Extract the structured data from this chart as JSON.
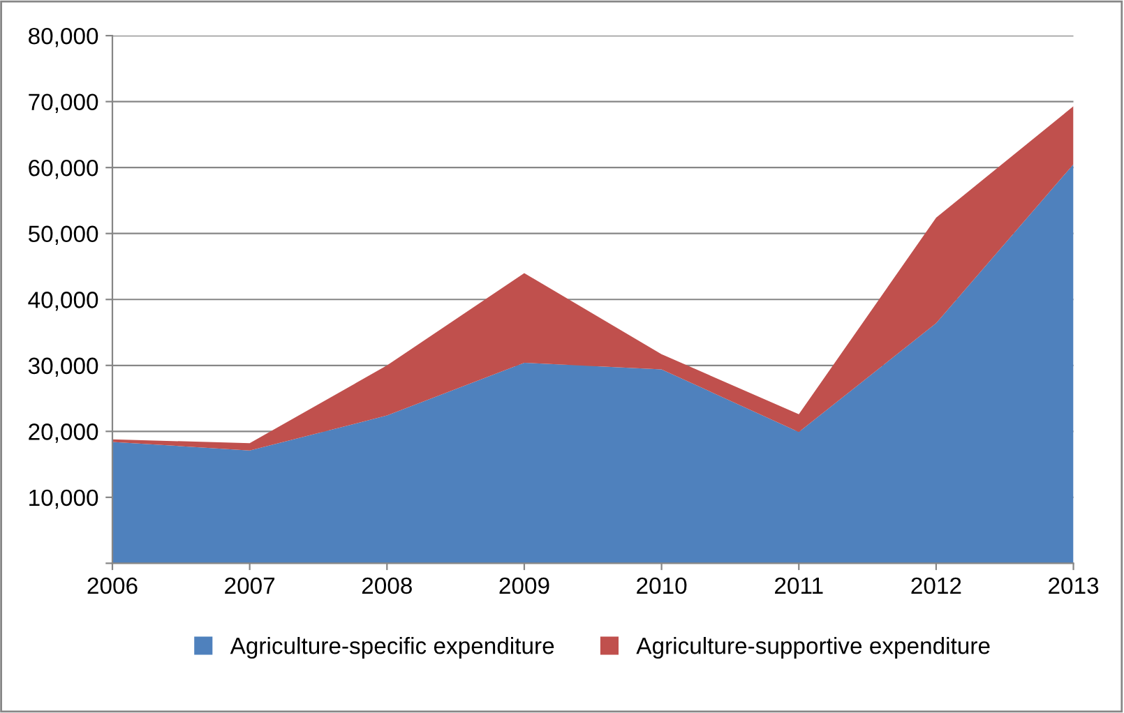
{
  "chart_data": {
    "type": "area",
    "stacked": true,
    "x": [
      2006,
      2007,
      2008,
      2009,
      2010,
      2011,
      2012,
      2013
    ],
    "series": [
      {
        "name": "Agriculture-specific expenditure",
        "color": "#4f81bd",
        "values": [
          18400,
          17100,
          22400,
          30400,
          29400,
          19900,
          36400,
          60500
        ]
      },
      {
        "name": "Agriculture-supportive expenditure",
        "color": "#c0504d",
        "values": [
          400,
          1100,
          7600,
          13600,
          2300,
          2700,
          16000,
          8800
        ]
      }
    ],
    "xlim": [
      2006,
      2013
    ],
    "xticks": [
      2006,
      2007,
      2008,
      2009,
      2010,
      2011,
      2012,
      2013
    ],
    "ylim": [
      0,
      80000
    ],
    "yticks": [
      {
        "value": 0,
        "label": null
      },
      {
        "value": 10000,
        "label": "10,000"
      },
      {
        "value": 20000,
        "label": "20,000"
      },
      {
        "value": 30000,
        "label": "30,000"
      },
      {
        "value": 40000,
        "label": "40,000"
      },
      {
        "value": 50000,
        "label": "50,000"
      },
      {
        "value": 60000,
        "label": "60,000"
      },
      {
        "value": 70000,
        "label": "70,000"
      },
      {
        "value": 80000,
        "label": "80,000"
      }
    ],
    "grid": "y",
    "legend": "bottom"
  }
}
